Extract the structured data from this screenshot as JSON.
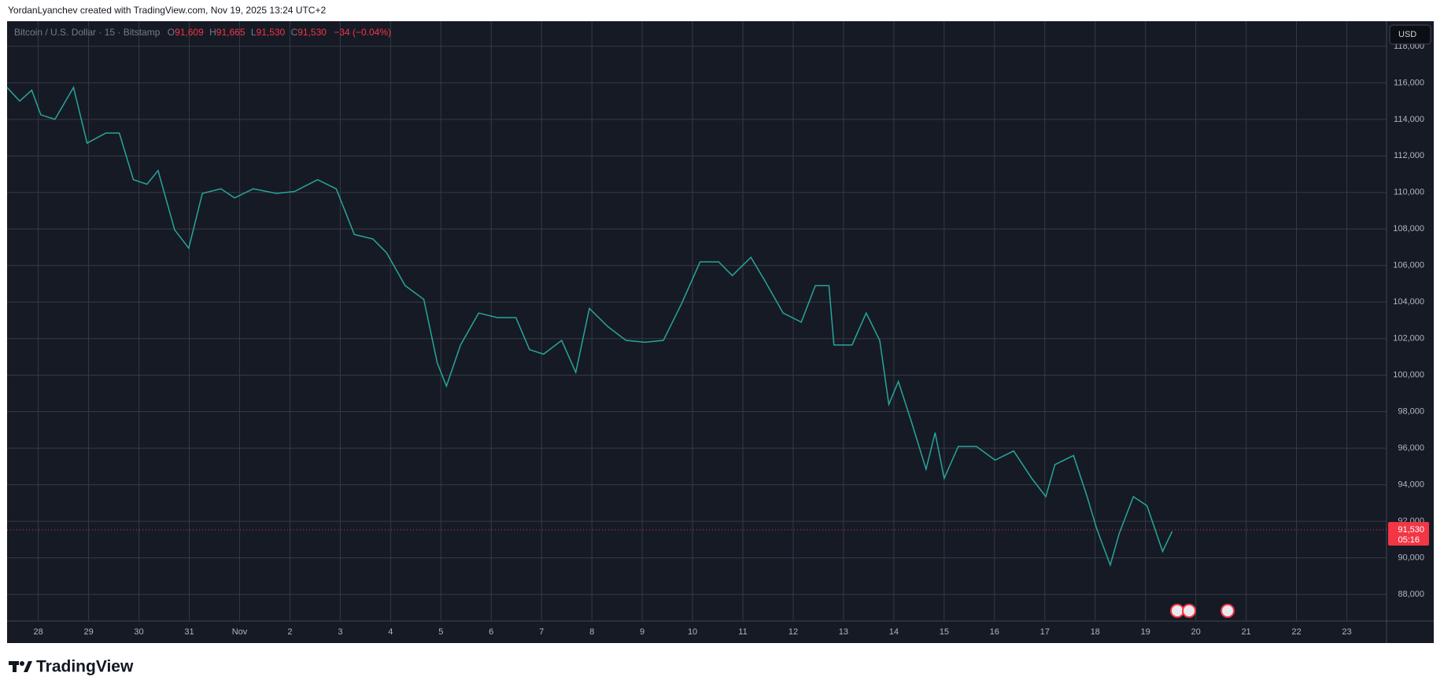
{
  "header": {
    "attribution": "YordanLyanchev created with TradingView.com, Nov 19, 2025 13:24 UTC+2",
    "logo": "TradingView"
  },
  "legend": {
    "symbol": "Bitcoin / U.S. Dollar · 15 · Bitstamp",
    "ohlc": [
      {
        "key": "O",
        "value": "91,609"
      },
      {
        "key": "H",
        "value": "91,665"
      },
      {
        "key": "L",
        "value": "91,530"
      },
      {
        "key": "C",
        "value": "91,530"
      }
    ],
    "change": "−34 (−0.04%)"
  },
  "currency": "USD",
  "chart_data": {
    "type": "line",
    "color": "#26a69a",
    "grid": true,
    "x": [
      0.38,
      0.63,
      0.87,
      1.05,
      1.33,
      1.7,
      1.97,
      2.34,
      2.61,
      2.89,
      3.16,
      3.38,
      3.71,
      3.99,
      4.26,
      4.63,
      4.9,
      5.27,
      5.73,
      6.09,
      6.55,
      6.92,
      7.28,
      7.65,
      7.92,
      8.29,
      8.66,
      8.93,
      9.11,
      9.39,
      9.75,
      10.12,
      10.49,
      10.76,
      11.04,
      11.4,
      11.68,
      11.95,
      12.32,
      12.68,
      13.05,
      13.42,
      13.78,
      14.15,
      14.52,
      14.79,
      15.16,
      15.43,
      15.8,
      16.16,
      16.44,
      16.71,
      16.81,
      17.17,
      17.45,
      17.72,
      17.9,
      18.09,
      18.36,
      18.64,
      18.82,
      19.0,
      19.28,
      19.64,
      20.01,
      20.38,
      20.74,
      21.02,
      21.2,
      21.57,
      21.84,
      22.03,
      22.3,
      22.48,
      22.76,
      23.03,
      23.34,
      23.53
    ],
    "values": [
      115750,
      115000,
      115600,
      114250,
      114000,
      115750,
      112700,
      113250,
      113250,
      110700,
      110450,
      111200,
      107950,
      106950,
      109950,
      110200,
      109700,
      110200,
      109950,
      110050,
      110700,
      110200,
      107700,
      107450,
      106700,
      104900,
      104150,
      100650,
      99400,
      101650,
      103400,
      103150,
      103150,
      101400,
      101150,
      101900,
      100150,
      103650,
      102650,
      101900,
      101800,
      101900,
      103900,
      106200,
      106200,
      105450,
      106450,
      105200,
      103400,
      102900,
      104900,
      104900,
      101650,
      101650,
      103400,
      101900,
      98400,
      99650,
      97350,
      94850,
      96850,
      94350,
      96100,
      96100,
      95350,
      95850,
      94350,
      93350,
      95100,
      95600,
      93350,
      91600,
      89600,
      91350,
      93350,
      92850,
      90350,
      91450
    ],
    "xlim": [
      0.38,
      27.79
    ],
    "xticks": [
      {
        "value": 1,
        "label": "28"
      },
      {
        "value": 2,
        "label": "29"
      },
      {
        "value": 3,
        "label": "30"
      },
      {
        "value": 4,
        "label": "31"
      },
      {
        "value": 5,
        "label": "Nov"
      },
      {
        "value": 6,
        "label": "2"
      },
      {
        "value": 7,
        "label": "3"
      },
      {
        "value": 8,
        "label": "4"
      },
      {
        "value": 9,
        "label": "5"
      },
      {
        "value": 10,
        "label": "6"
      },
      {
        "value": 11,
        "label": "7"
      },
      {
        "value": 12,
        "label": "8"
      },
      {
        "value": 13,
        "label": "9"
      },
      {
        "value": 14,
        "label": "10"
      },
      {
        "value": 15,
        "label": "11"
      },
      {
        "value": 16,
        "label": "12"
      },
      {
        "value": 17,
        "label": "13"
      },
      {
        "value": 18,
        "label": "14"
      },
      {
        "value": 19,
        "label": "15"
      },
      {
        "value": 20,
        "label": "16"
      },
      {
        "value": 21,
        "label": "17"
      },
      {
        "value": 22,
        "label": "18"
      },
      {
        "value": 23,
        "label": "19"
      },
      {
        "value": 24,
        "label": "20"
      },
      {
        "value": 25,
        "label": "21"
      },
      {
        "value": 26,
        "label": "22"
      },
      {
        "value": 27,
        "label": "23"
      }
    ],
    "ylim": [
      86540,
      119373
    ],
    "yticks": [
      {
        "value": 88000,
        "label": "88,000"
      },
      {
        "value": 90000,
        "label": "90,000"
      },
      {
        "value": 92000,
        "label": "92,000"
      },
      {
        "value": 94000,
        "label": "94,000"
      },
      {
        "value": 96000,
        "label": "96,000"
      },
      {
        "value": 98000,
        "label": "98,000"
      },
      {
        "value": 100000,
        "label": "100,000"
      },
      {
        "value": 102000,
        "label": "102,000"
      },
      {
        "value": 104000,
        "label": "104,000"
      },
      {
        "value": 106000,
        "label": "106,000"
      },
      {
        "value": 108000,
        "label": "108,000"
      },
      {
        "value": 110000,
        "label": "110,000"
      },
      {
        "value": 112000,
        "label": "112,000"
      },
      {
        "value": 114000,
        "label": "114,000"
      },
      {
        "value": 116000,
        "label": "116,000"
      },
      {
        "value": 118000,
        "label": "118,000"
      }
    ],
    "last_price": {
      "value": 91530,
      "label": "91,530",
      "countdown": "05:16",
      "color": "#f23645"
    }
  }
}
